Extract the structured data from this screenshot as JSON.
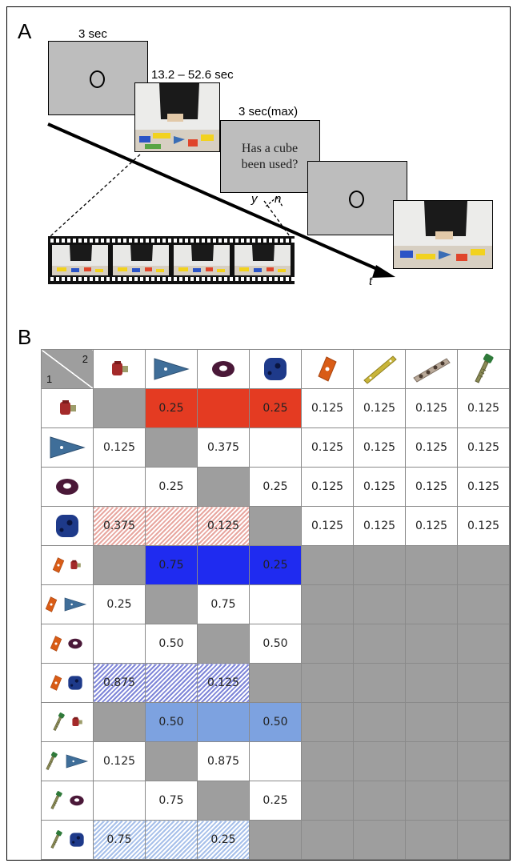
{
  "panelA": {
    "letter": "A",
    "durations": {
      "fixation": "3 sec",
      "video": "13.2 – 52.6 sec",
      "question": "3 sec(max)"
    },
    "question_text_line1": "Has a cube",
    "question_text_line2": "been used?",
    "response_yes": "y",
    "response_no": "n",
    "time_axis_label": "t"
  },
  "panelB": {
    "letter": "B",
    "corner": {
      "top_right": "2",
      "bottom_left": "1"
    },
    "column_headers": [
      "red-bolt-icon",
      "blue-triangle-icon",
      "purple-ring-icon",
      "blue-cube-icon",
      "orange-diamond-icon",
      "yellow-bar-icon",
      "holed-bar-icon",
      "green-screw-icon"
    ],
    "rows": [
      {
        "label_icons": [
          "red-bolt-icon"
        ],
        "cells": [
          "",
          "0.25",
          "",
          "0.25",
          "0.125",
          "0.125",
          "0.125",
          "0.125"
        ]
      },
      {
        "label_icons": [
          "blue-triangle-icon"
        ],
        "cells": [
          "0.125",
          "",
          "0.375",
          "",
          "0.125",
          "0.125",
          "0.125",
          "0.125"
        ]
      },
      {
        "label_icons": [
          "purple-ring-icon"
        ],
        "cells": [
          "",
          "0.25",
          "",
          "0.25",
          "0.125",
          "0.125",
          "0.125",
          "0.125"
        ]
      },
      {
        "label_icons": [
          "blue-cube-icon"
        ],
        "cells": [
          "0.375",
          "",
          "0.125",
          "",
          "0.125",
          "0.125",
          "0.125",
          "0.125"
        ]
      },
      {
        "label_icons": [
          "orange-diamond-icon",
          "red-bolt-icon"
        ],
        "cells": [
          "",
          "0.75",
          "",
          "0.25",
          "",
          "",
          "",
          ""
        ]
      },
      {
        "label_icons": [
          "orange-diamond-icon",
          "blue-triangle-icon"
        ],
        "cells": [
          "0.25",
          "",
          "0.75",
          "",
          "",
          "",
          "",
          ""
        ]
      },
      {
        "label_icons": [
          "orange-diamond-icon",
          "purple-ring-icon"
        ],
        "cells": [
          "",
          "0.50",
          "",
          "0.50",
          "",
          "",
          "",
          ""
        ]
      },
      {
        "label_icons": [
          "orange-diamond-icon",
          "blue-cube-icon"
        ],
        "cells": [
          "0.875",
          "",
          "0.125",
          "",
          "",
          "",
          "",
          ""
        ]
      },
      {
        "label_icons": [
          "green-screw-icon",
          "red-bolt-icon"
        ],
        "cells": [
          "",
          "0.50",
          "",
          "0.50",
          "",
          "",
          "",
          ""
        ]
      },
      {
        "label_icons": [
          "green-screw-icon",
          "blue-triangle-icon"
        ],
        "cells": [
          "0.125",
          "",
          "0.875",
          "",
          "",
          "",
          "",
          ""
        ]
      },
      {
        "label_icons": [
          "green-screw-icon",
          "purple-ring-icon"
        ],
        "cells": [
          "",
          "0.75",
          "",
          "0.25",
          "",
          "",
          "",
          ""
        ]
      },
      {
        "label_icons": [
          "green-screw-icon",
          "blue-cube-icon"
        ],
        "cells": [
          "0.75",
          "",
          "0.25",
          "",
          "",
          "",
          "",
          ""
        ]
      }
    ],
    "cell_styles": [
      [
        "g",
        "red",
        "red",
        "red",
        "lt",
        "lt",
        "lt",
        "lt"
      ],
      [
        "w",
        "g",
        "w",
        "w",
        "lt",
        "lt",
        "lt",
        "lt"
      ],
      [
        "w",
        "w",
        "g",
        "w",
        "lt",
        "lt",
        "lt",
        "lt"
      ],
      [
        "hred",
        "hred",
        "hred",
        "g",
        "lt",
        "lt",
        "lt",
        "lt"
      ],
      [
        "g",
        "blu",
        "blu",
        "blu",
        "g",
        "g",
        "g",
        "g"
      ],
      [
        "w",
        "g",
        "w",
        "w",
        "g",
        "g",
        "g",
        "g"
      ],
      [
        "w",
        "w",
        "g",
        "w",
        "g",
        "g",
        "g",
        "g"
      ],
      [
        "hblu",
        "hblu",
        "hblu",
        "g",
        "g",
        "g",
        "g",
        "g"
      ],
      [
        "g",
        "lblu",
        "lblu",
        "lblu",
        "g",
        "g",
        "g",
        "g"
      ],
      [
        "w",
        "g",
        "w",
        "w",
        "g",
        "g",
        "g",
        "g"
      ],
      [
        "w",
        "w",
        "g",
        "w",
        "g",
        "g",
        "g",
        "g"
      ],
      [
        "hlblu",
        "hlblu",
        "hlblu",
        "g",
        "g",
        "g",
        "g",
        "g"
      ]
    ],
    "colors": {
      "red": "#e43b22",
      "blue": "#1f2bf0",
      "light_blue": "#7da2e0",
      "gray": "#9e9e9e"
    }
  }
}
